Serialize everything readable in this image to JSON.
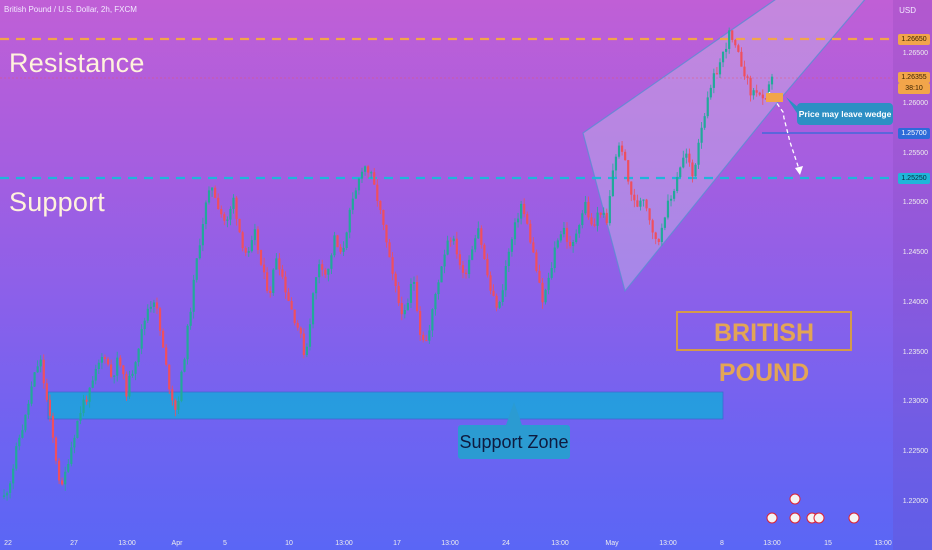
{
  "header": {
    "title": "British Pound / U.S. Dollar, 2h, FXCM",
    "currency": "USD"
  },
  "annotations": {
    "resistance": "Resistance",
    "support": "Support",
    "support_zone": "Support Zone",
    "british_pound": "BRITISH POUND",
    "callout": "Price may leave wedge"
  },
  "price_labels": {
    "resistance_value": "1.26650",
    "current_value": "1.26355",
    "current_countdown": "38:10",
    "blue_line_value": "1.25700",
    "support_value": "1.25250"
  },
  "colors": {
    "up_candle": "#22a99a",
    "down_candle": "#ef4f5e",
    "resistance_line": "#f2a54a",
    "support_line": "#1fb6d9",
    "zone": "#1aa6dc",
    "wedge": "#c9c4e6"
  },
  "chart_data": {
    "type": "candlestick",
    "title": "British Pound / U.S. Dollar, 2h, FXCM",
    "y_axis": {
      "label": "USD",
      "ticks": [
        "1.26500",
        "1.26000",
        "1.25500",
        "1.25000",
        "1.24500",
        "1.24000",
        "1.23500",
        "1.23000",
        "1.22500",
        "1.22000"
      ],
      "range": [
        1.2167,
        1.2707
      ]
    },
    "x_axis": {
      "ticks": [
        "22",
        "27",
        "13:00",
        "Apr",
        "5",
        "10",
        "13:00",
        "17",
        "13:00",
        "24",
        "13:00",
        "May",
        "13:00",
        "8",
        "13:00",
        "15",
        "13:00"
      ]
    },
    "levels": [
      {
        "name": "Resistance",
        "value": 1.2665
      },
      {
        "name": "Support",
        "value": 1.2525
      }
    ],
    "support_zone": {
      "from": 1.2282,
      "to": 1.2308
    },
    "close_path": [
      1.2205,
      1.2225,
      1.2262,
      1.2285,
      1.232,
      1.2345,
      1.23,
      1.2255,
      1.221,
      1.2245,
      1.2275,
      1.23,
      1.231,
      1.2335,
      1.235,
      1.2325,
      1.2345,
      1.231,
      1.2335,
      1.2365,
      1.2395,
      1.2405,
      1.236,
      1.2318,
      1.229,
      1.234,
      1.2395,
      1.245,
      1.2495,
      1.2518,
      1.2495,
      1.2478,
      1.2505,
      1.2465,
      1.2445,
      1.247,
      1.243,
      1.241,
      1.245,
      1.242,
      1.2395,
      1.2375,
      1.2345,
      1.2405,
      1.2445,
      1.2425,
      1.2465,
      1.2445,
      1.2485,
      1.251,
      1.254,
      1.253,
      1.2505,
      1.247,
      1.243,
      1.24,
      1.2385,
      1.243,
      1.237,
      1.236,
      1.2405,
      1.244,
      1.247,
      1.2455,
      1.2425,
      1.245,
      1.248,
      1.244,
      1.2405,
      1.2395,
      1.244,
      1.247,
      1.25,
      1.2475,
      1.244,
      1.24,
      1.2425,
      1.2465,
      1.2475,
      1.245,
      1.248,
      1.25,
      1.2472,
      1.2495,
      1.2478,
      1.2545,
      1.256,
      1.252,
      1.2495,
      1.251,
      1.2485,
      1.2455,
      1.249,
      1.2505,
      1.2535,
      1.255,
      1.2525,
      1.2575,
      1.26,
      1.2628,
      1.2645,
      1.267,
      1.2652,
      1.2637,
      1.261,
      1.2615,
      1.2595,
      1.263
    ]
  }
}
